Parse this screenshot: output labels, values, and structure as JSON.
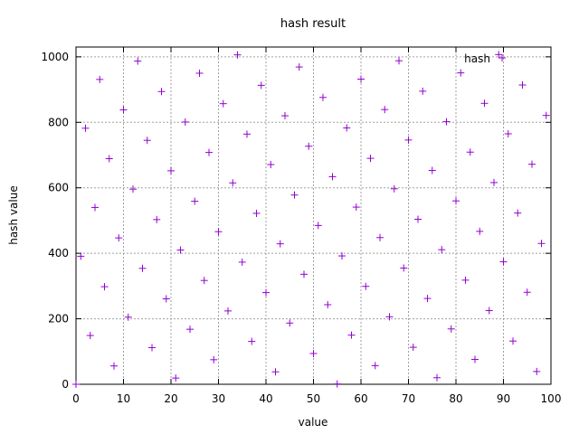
{
  "chart_data": {
    "type": "scatter",
    "title": "hash result",
    "xlabel": "value",
    "ylabel": "hash value",
    "xlim": [
      0,
      100
    ],
    "ylim": [
      0,
      1030
    ],
    "xticks": [
      0,
      10,
      20,
      30,
      40,
      50,
      60,
      70,
      80,
      90,
      100
    ],
    "yticks": [
      0,
      200,
      400,
      600,
      800,
      1000
    ],
    "grid": true,
    "legend_position": "top-right",
    "series": [
      {
        "name": "hash",
        "color": "#9400d3",
        "marker": "plus",
        "x": [
          0,
          1,
          2,
          3,
          4,
          5,
          6,
          7,
          8,
          9,
          10,
          11,
          12,
          13,
          14,
          15,
          16,
          17,
          18,
          19,
          20,
          21,
          22,
          23,
          24,
          25,
          26,
          27,
          28,
          29,
          30,
          31,
          32,
          33,
          34,
          35,
          36,
          37,
          38,
          39,
          40,
          41,
          42,
          43,
          44,
          45,
          46,
          47,
          48,
          49,
          50,
          51,
          52,
          53,
          54,
          55,
          56,
          57,
          58,
          59,
          60,
          61,
          62,
          63,
          64,
          65,
          66,
          67,
          68,
          69,
          70,
          71,
          72,
          73,
          74,
          75,
          76,
          77,
          78,
          79,
          80,
          81,
          82,
          83,
          84,
          85,
          86,
          87,
          88,
          89,
          90,
          91,
          92,
          93,
          94,
          95,
          96,
          97,
          98,
          99
        ],
        "y": [
          0,
          391,
          782,
          149,
          540,
          931,
          298,
          689,
          56,
          447,
          838,
          205,
          596,
          987,
          354,
          745,
          112,
          503,
          894,
          261,
          652,
          19,
          410,
          801,
          168,
          559,
          950,
          317,
          708,
          75,
          466,
          857,
          224,
          615,
          1006,
          373,
          764,
          131,
          522,
          913,
          280,
          671,
          38,
          429,
          820,
          187,
          578,
          969,
          336,
          727,
          94,
          485,
          876,
          243,
          634,
          1,
          392,
          783,
          150,
          541,
          932,
          299,
          690,
          57,
          448,
          839,
          206,
          597,
          988,
          355,
          746,
          113,
          504,
          895,
          262,
          653,
          20,
          411,
          802,
          169,
          560,
          951,
          318,
          709,
          76,
          467,
          858,
          225,
          616,
          1007,
          374,
          765,
          132,
          523,
          914,
          281,
          672,
          39,
          430,
          821
        ]
      }
    ]
  }
}
